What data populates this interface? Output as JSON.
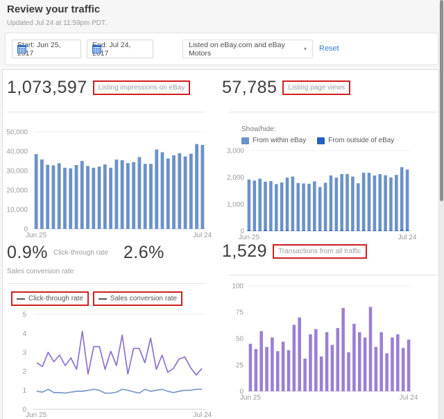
{
  "page": {
    "title": "Review your traffic",
    "updated": "Updated Jul 24 at 11:59pm PDT."
  },
  "filters": {
    "start": "Start: Jun 25, 2017",
    "end": "End: Jul 24, 2017",
    "listing_scope": "Listed on eBay.com and eBay Motors",
    "reset": "Reset"
  },
  "panels": {
    "impressions": {
      "value": "1,073,597",
      "label": "Listing impressions on eBay"
    },
    "page_views": {
      "value": "57,785",
      "label": "Listing page views",
      "show_hide": "Show/hide:",
      "legend": [
        {
          "label": "From within eBay",
          "color": "#6b92c8"
        },
        {
          "label": "From outside of eBay",
          "color": "#2361c4"
        }
      ]
    },
    "rates": {
      "ctr_value": "0.9%",
      "ctr_label": "Click-through rate",
      "scr_value": "2.6%",
      "scr_label": "Sales conversion rate",
      "legend": [
        {
          "label": "Click-through rate"
        },
        {
          "label": "Sales conversion rate"
        }
      ]
    },
    "transactions": {
      "value": "1,529",
      "label": "Transactions from all traffic"
    }
  },
  "chart_data": [
    {
      "id": "impressions",
      "type": "bar",
      "title": "Listing impressions on eBay",
      "total": 1073597,
      "x_start": "Jun 25",
      "x_end": "Jul 24",
      "ylim": [
        0,
        50000
      ],
      "ytick_values": [
        0,
        10000,
        20000,
        30000,
        40000,
        50000
      ],
      "ytick_labels": [
        "0",
        "10,000",
        "20,000",
        "30,000",
        "40,000",
        "50,000"
      ],
      "color": "#6b92c8",
      "values": [
        38500,
        35800,
        33000,
        32700,
        33800,
        31500,
        31200,
        32900,
        35000,
        32400,
        31500,
        32100,
        33200,
        31500,
        35700,
        35400,
        33900,
        34400,
        37000,
        33500,
        33500,
        40900,
        39500,
        36300,
        37900,
        39000,
        37300,
        38700,
        43700,
        43200
      ]
    },
    {
      "id": "pageviews",
      "type": "bar",
      "title": "Listing page views",
      "total": 57785,
      "x_start": "Jun 25",
      "x_end": "Jul 24",
      "ylim": [
        0,
        3000
      ],
      "ytick_values": [
        0,
        1000,
        2000,
        3000
      ],
      "ytick_labels": [
        "0",
        "1,000",
        "2,000",
        "3,000"
      ],
      "stacked": true,
      "series": [
        {
          "name": "From outside of eBay",
          "color": "#2361c4",
          "values": [
            40,
            30,
            30,
            50,
            30,
            30,
            30,
            40,
            30,
            30,
            30,
            30,
            30,
            30,
            30,
            40,
            30,
            40,
            30,
            30,
            30,
            40,
            30,
            30,
            40,
            30,
            30,
            30,
            50,
            40
          ]
        },
        {
          "name": "From within eBay",
          "color": "#6b92c8",
          "values": [
            1880,
            1850,
            1920,
            1790,
            1830,
            1720,
            1780,
            1950,
            2000,
            1760,
            1740,
            1730,
            1820,
            1610,
            1770,
            2030,
            1960,
            2080,
            2090,
            2000,
            1750,
            2130,
            2140,
            2040,
            2080,
            2050,
            1970,
            2060,
            2330,
            2250
          ]
        }
      ]
    },
    {
      "id": "rates",
      "type": "line",
      "title": "Click-through rate / Sales conversion rate",
      "x_start": "Jun 25",
      "x_end": "Jul 24",
      "ylim": [
        0,
        5
      ],
      "ytick_values": [
        0,
        1,
        2,
        3,
        4,
        5
      ],
      "ytick_labels": [
        "0",
        "1",
        "2",
        "3",
        "4",
        "5"
      ],
      "series": [
        {
          "name": "Click-through rate",
          "color": "#7b97c6",
          "values": [
            0.95,
            0.9,
            1.05,
            0.88,
            0.88,
            0.85,
            0.9,
            0.95,
            0.95,
            1.0,
            1.05,
            1.0,
            0.85,
            0.85,
            0.9,
            1.05,
            1.0,
            0.92,
            0.85,
            1.05,
            0.95,
            1.0,
            1.05,
            0.95,
            0.88,
            0.95,
            1.0,
            1.0,
            1.05,
            1.05
          ]
        },
        {
          "name": "Sales conversion rate",
          "color": "#8f70ca",
          "values": [
            2.45,
            2.25,
            3.0,
            2.5,
            2.85,
            2.3,
            2.7,
            2.1,
            4.1,
            1.85,
            3.3,
            3.3,
            2.1,
            3.05,
            2.3,
            3.9,
            1.85,
            3.2,
            3.2,
            2.45,
            3.75,
            2.1,
            2.85,
            1.95,
            2.15,
            2.65,
            2.75,
            2.2,
            1.8,
            2.15
          ]
        }
      ]
    },
    {
      "id": "transactions",
      "type": "bar",
      "title": "Transactions from all traffic",
      "total": 1529,
      "x_start": "Jun 25",
      "x_end": "Jul 24",
      "ylim": [
        0,
        100
      ],
      "ytick_values": [
        0,
        25,
        50,
        75,
        100
      ],
      "ytick_labels": [
        "0",
        "25",
        "50",
        "75",
        "100"
      ],
      "color": "#9b7fd4",
      "values": [
        45,
        40,
        57,
        42,
        51,
        38,
        47,
        39,
        63,
        70,
        31,
        54,
        59,
        33,
        56,
        44,
        60,
        79,
        37,
        64,
        56,
        51,
        80,
        42,
        56,
        36,
        51,
        54,
        41,
        49
      ]
    }
  ]
}
